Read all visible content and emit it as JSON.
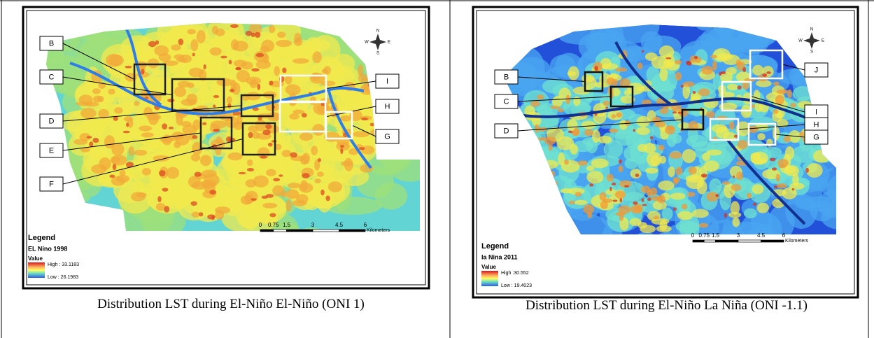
{
  "left_panel": {
    "labels": [
      "B",
      "C",
      "D",
      "E",
      "F",
      "I",
      "H",
      "G"
    ],
    "compass": {
      "n": "N",
      "s": "S",
      "e": "E",
      "w": "W"
    },
    "scale": {
      "ticks": [
        0,
        0.75,
        1.5,
        3,
        4.5,
        6
      ],
      "unit": "Kilometers"
    },
    "legend": {
      "title": "Legend",
      "layer": "EL Nino 1998",
      "field": "Value",
      "high": "High : 33.1183",
      "low": "Low : 26.1983"
    },
    "caption": "Distribution LST during El-Niño El-Niño (ONI 1)"
  },
  "right_panel": {
    "labels": [
      "B",
      "C",
      "D",
      "J",
      "I",
      "H",
      "G"
    ],
    "compass": {
      "n": "N",
      "s": "S",
      "e": "E",
      "w": "W"
    },
    "scale": {
      "ticks": [
        0,
        0.75,
        1.5,
        3,
        4.5,
        6
      ],
      "unit": "Kilometers"
    },
    "legend": {
      "title": "Legend",
      "layer": "la Nina 2011",
      "field": "Value",
      "high": "High :30.552",
      "low": "Low : 19.4023"
    },
    "caption": "Distribution LST during El-Niño La Niña (ONI -1.1)"
  }
}
